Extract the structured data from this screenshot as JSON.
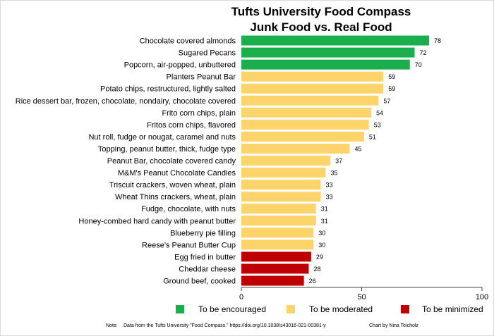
{
  "chart_data": {
    "type": "bar",
    "orientation": "horizontal",
    "title": "Tufts University Food Compass",
    "subtitle": "Junk Food vs. Real Food",
    "categories": [
      "Chocolate covered almonds",
      "Sugared Pecans",
      "Popcorn, air-popped, unbuttered",
      "Planters Peanut Bar",
      "Potato chips, restructured, lightly salted",
      "Rice dessert bar, frozen, chocolate, nondairy, chocolate covered",
      "Frito corn chips, plain",
      "Fritos corn chips, flavored",
      "Nut roll, fudge or nougat, caramel and nuts",
      "Topping, peanut butter, thick, fudge type",
      "Peanut Bar, chocolate covered candy",
      "M&M's Peanut Chocolate Candies",
      "Triscuit crackers, woven wheat, plain",
      "Wheat Thins crackers, wheat, plain",
      "Fudge, chocolate, with nuts",
      "Honey-combed hard candy with peanut butter",
      "Blueberry pie filling",
      "Reese's Peanut Butter Cup",
      "Egg fried in butter",
      "Cheddar cheese",
      "Ground beef, cooked"
    ],
    "values": [
      78,
      72,
      70,
      59,
      59,
      57,
      54,
      53,
      51,
      45,
      37,
      35,
      33,
      33,
      31,
      31,
      30,
      30,
      29,
      28,
      26
    ],
    "groups": [
      "encouraged",
      "encouraged",
      "encouraged",
      "moderated",
      "moderated",
      "moderated",
      "moderated",
      "moderated",
      "moderated",
      "moderated",
      "moderated",
      "moderated",
      "moderated",
      "moderated",
      "moderated",
      "moderated",
      "moderated",
      "moderated",
      "minimized",
      "minimized",
      "minimized"
    ],
    "xlim": [
      0,
      100
    ],
    "xticks": [
      "0",
      "50",
      "100"
    ],
    "grid": false,
    "legend_position": "bottom",
    "legend": [
      {
        "key": "encouraged",
        "label": "To be encouraged",
        "color": "#1aae4c"
      },
      {
        "key": "moderated",
        "label": "To be moderated",
        "color": "#fdd46a"
      },
      {
        "key": "minimized",
        "label": "To be minimized",
        "color": "#c00000"
      }
    ]
  },
  "footer": {
    "note_label": "Note:",
    "note": "Data from the Tufts University \"Food Compass.\" https://doi.org/10.1038/s43016-021-00381-y",
    "credit": "Chart by Nina  Teicholz"
  }
}
